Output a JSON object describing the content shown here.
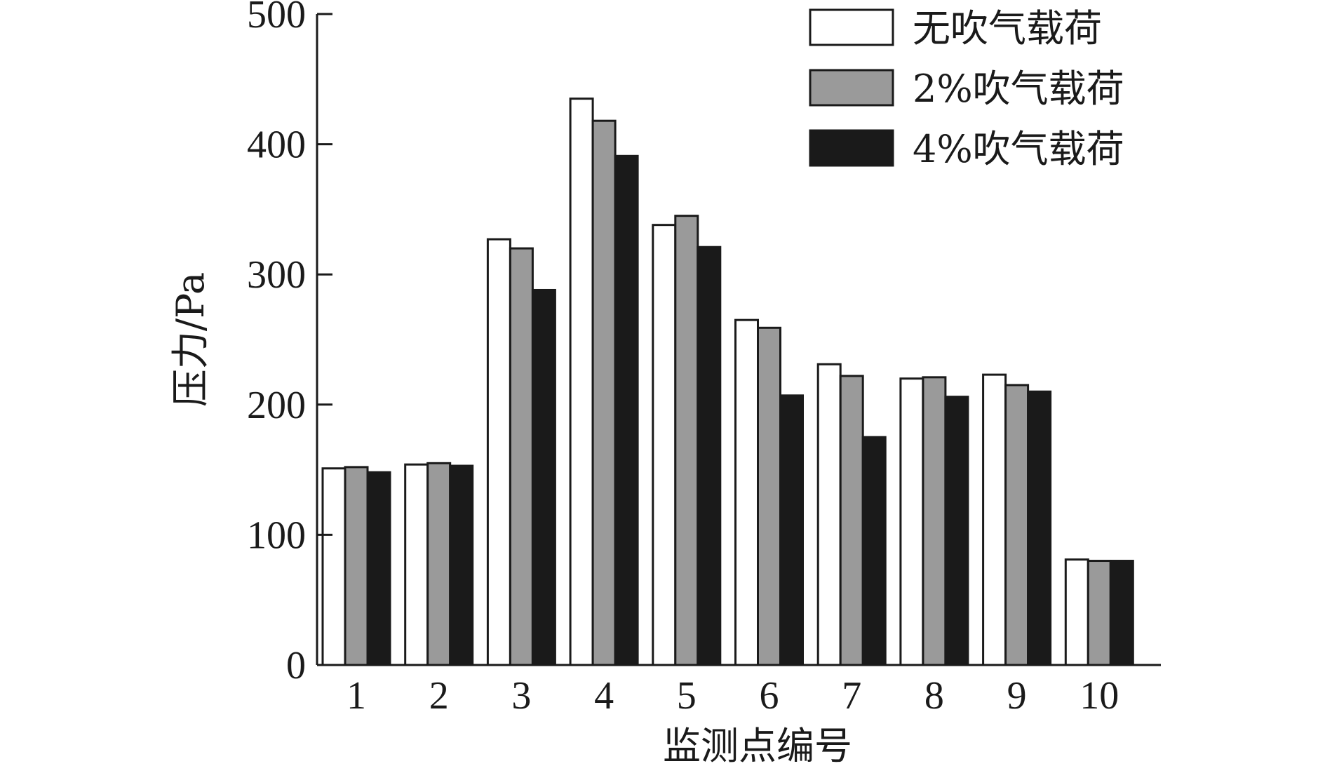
{
  "chart_data": {
    "type": "bar",
    "title": "",
    "xlabel": "监测点编号",
    "ylabel": "压力/Pa",
    "ylim": [
      0,
      500
    ],
    "yticks": [
      0,
      100,
      200,
      300,
      400,
      500
    ],
    "categories": [
      "1",
      "2",
      "3",
      "4",
      "5",
      "6",
      "7",
      "8",
      "9",
      "10"
    ],
    "series": [
      {
        "name": "无吹气载荷",
        "color": "#ffffff",
        "values": [
          151,
          154,
          327,
          435,
          338,
          265,
          231,
          220,
          223,
          81
        ]
      },
      {
        "name": "2%吹气载荷",
        "color": "#9a9a9a",
        "values": [
          152,
          155,
          320,
          418,
          345,
          259,
          222,
          221,
          215,
          80
        ]
      },
      {
        "name": "4%吹气载荷",
        "color": "#1a1a1a",
        "values": [
          148,
          153,
          288,
          391,
          321,
          207,
          175,
          206,
          210,
          80
        ]
      }
    ],
    "grid": false,
    "legend_position": "top-right"
  }
}
